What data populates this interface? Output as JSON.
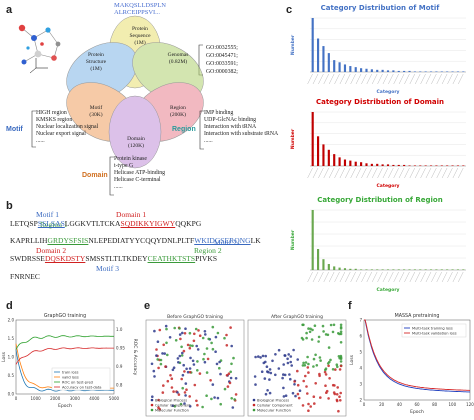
{
  "panels": {
    "a": "a",
    "b": "b",
    "c": "c",
    "d": "d",
    "e": "e",
    "f": "f"
  },
  "venn": {
    "protein_seq": "MAKQSLLDSPLN\nALRCEIPPSVI...",
    "go_terms": "GO:0032555;\nGO:0045471;\nGO:0033591;\nGO:0000382;",
    "labels": {
      "protein_sequence": "Protein\nSequence\n(1M)",
      "protein_structure": "Protein\nStructure\n(1M)",
      "genomes": "Genomas\n(0.82M)",
      "motif": "Motif\n(30K)",
      "region": "Region\n(200K)",
      "domain": "Domain\n(120K)"
    },
    "motif_tag": "Motif",
    "region_tag": "Region",
    "domain_tag": "Domain",
    "motif_list": [
      "HIGH region",
      "KMSKS region",
      "Nuclear localization signal",
      "Nuclear export signal",
      "......"
    ],
    "region_list": [
      "IMP binding",
      "UDP-GlcNAc binding",
      "Interaction with tRNA",
      "Interaction with substrate tRNA",
      "......"
    ],
    "domain_list": [
      "Protein kinase",
      "t-type G",
      "Helicase ATP-binding",
      "Helicase C-terminal",
      "......"
    ]
  },
  "seqpanel": {
    "motif1": "Motif 1",
    "domain1": "Domain 1",
    "region1": "Region 1",
    "region2": "Region 2",
    "domain2": "Domain 2",
    "motif2": "Motif 2",
    "motif3": "Motif 3",
    "line1": [
      "LETQSP",
      "SSLSAS",
      "LGGKVTLTCKA",
      "SQDIKKYIGWY",
      "QQKPG"
    ],
    "line2": [
      "KAPRLLIH",
      "GRDYSFSIS",
      "NLEPEDIATYY",
      "CQQYDNLPLTF"
    ],
    "line2b": [
      "WKIDGSERQNG",
      "LK"
    ],
    "line3": [
      "SWDRSSE",
      "DQSKDSTY",
      "SMSSTLTLTKDEY",
      "CEATHKTSTS",
      "PIVKS"
    ],
    "line3b": [
      "FNRNEC"
    ]
  },
  "charts_c": [
    {
      "title": "Category Distribution of Motif",
      "ylabel": "Number",
      "xlabel": "Category",
      "color": "#4472c4",
      "title_color": "#4472c4",
      "values": [
        100,
        62,
        48,
        35,
        22,
        18,
        14,
        11,
        9,
        7,
        6,
        5,
        4,
        4,
        3,
        3,
        2,
        2,
        2,
        1,
        1,
        1,
        1,
        1,
        1,
        1,
        1,
        1,
        1
      ]
    },
    {
      "title": "Category Distribution of Domain",
      "ylabel": "Number",
      "xlabel": "Category",
      "color": "#c00000",
      "title_color": "#d00000",
      "values": [
        100,
        55,
        40,
        30,
        22,
        16,
        12,
        10,
        8,
        7,
        5,
        4,
        4,
        3,
        3,
        2,
        2,
        2,
        1,
        1,
        1,
        1,
        1,
        1,
        1,
        1,
        1,
        1,
        1
      ]
    },
    {
      "title": "Category Distribution of Region",
      "ylabel": "Number",
      "xlabel": "Category",
      "color": "#6aa84f",
      "title_color": "#38a838",
      "values": [
        100,
        35,
        18,
        10,
        6,
        4,
        3,
        2,
        2,
        1,
        1,
        1,
        1,
        1,
        1,
        1,
        1,
        1,
        1,
        1,
        1,
        1,
        1,
        1,
        1,
        1,
        1,
        1,
        1
      ]
    }
  ],
  "chart_d": {
    "title": "GraphGO training",
    "xlabel": "Epoch",
    "ylabel": "Loss",
    "ylabel2": "ROC & Accuracy",
    "legend": [
      "train loss",
      "valid loss",
      "ROC on test-pred",
      "Accuracy on test-data"
    ],
    "colors": [
      "#1f77b4",
      "#ff7f0e",
      "#2ca02c",
      "#d62728"
    ],
    "xticks": [
      "0",
      "1000",
      "2000",
      "3000",
      "4000",
      "5000"
    ],
    "yticks": [
      "0.0",
      "0.5",
      "1.0",
      "1.5",
      "2.0"
    ],
    "yticks2": [
      "0.8",
      "0.9",
      "0.95",
      "1.0"
    ]
  },
  "chart_e": {
    "left_title": "Before GraphGO training",
    "right_title": "After GraphGO training",
    "legend": [
      "Biological Process",
      "Cellular Component",
      "Molecular Function"
    ],
    "colors": [
      "#2d3a8c",
      "#c62828",
      "#3a9a3a"
    ]
  },
  "chart_f": {
    "title": "MASSA pretraining",
    "xlabel": "Epoch",
    "ylabel": "Loss",
    "legend": [
      "Multi-task training loss",
      "Multi-task validation loss"
    ],
    "colors": [
      "#1f3fbf",
      "#d62728"
    ],
    "xticks": [
      "0",
      "20",
      "40",
      "60",
      "80",
      "100",
      "120"
    ],
    "yticks": [
      "2",
      "3",
      "4",
      "5",
      "6",
      "7"
    ]
  }
}
